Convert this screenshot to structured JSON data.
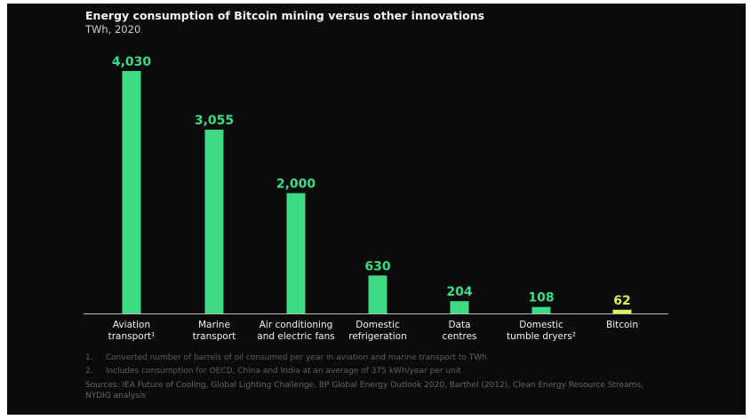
{
  "header": {
    "title": "Energy consumption of Bitcoin mining versus other innovations",
    "subtitle": "TWh, 2020"
  },
  "colors": {
    "background": "#0b0b0b",
    "bar": "#3ddc84",
    "highlight": "#d7f25a",
    "text": "#f2f2f2"
  },
  "chart_data": {
    "type": "bar",
    "title": "Energy consumption of Bitcoin mining versus other innovations",
    "subtitle": "TWh, 2020",
    "categories": [
      [
        "Aviation",
        "transport¹"
      ],
      [
        "Marine",
        "transport"
      ],
      [
        "Air conditioning",
        "and electric fans"
      ],
      [
        "Domestic",
        "refrigeration"
      ],
      [
        "Data",
        "centres"
      ],
      [
        "Domestic",
        "tumble dryers²"
      ],
      [
        "Bitcoin"
      ]
    ],
    "values": [
      4030,
      3055,
      2000,
      630,
      204,
      108,
      62
    ],
    "value_labels": [
      "4,030",
      "3,055",
      "2,000",
      "630",
      "204",
      "108",
      "62"
    ],
    "highlight_index": 6,
    "ylim": [
      0,
      4030
    ],
    "grid": false,
    "legend": "none"
  },
  "footnotes": [
    {
      "num": "1.",
      "text": "Converted number of barrels of oil consumed per year in aviation and marine transport to TWh"
    },
    {
      "num": "2.",
      "text": "Includes consumption for OECD, China and India at an average of 375 kWh/year per unit"
    }
  ],
  "sources": "Sources: IEA Future of Cooling, Global Lighting Challenge, BP Global Energy Outlook 2020, Barthel (2012), Clean Energy Resource Streams, NYDIG analysis"
}
